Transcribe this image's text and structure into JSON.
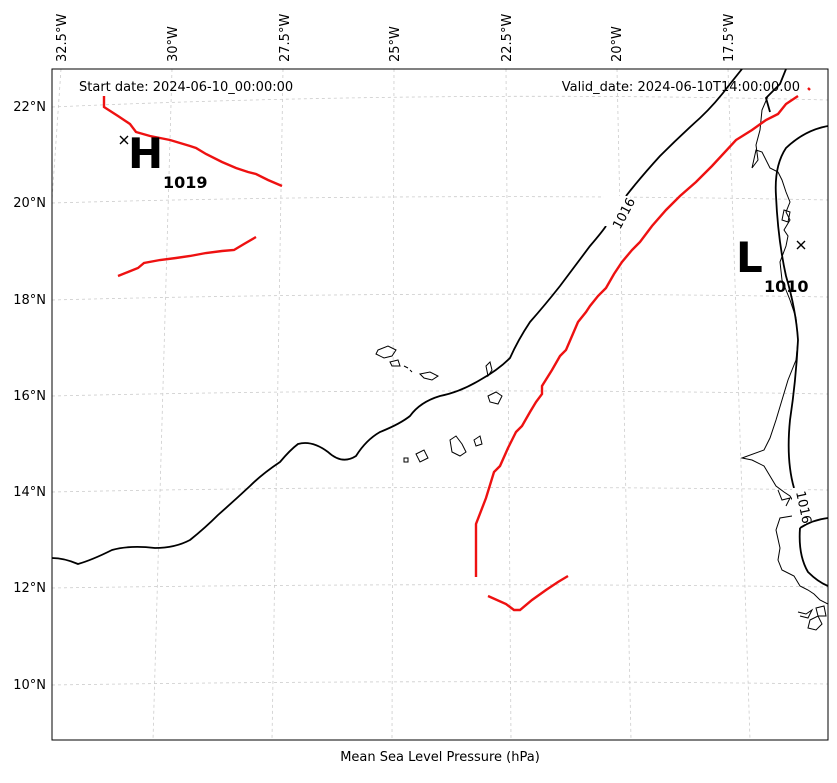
{
  "map": {
    "start_date": "Start date: 2024-06-10_00:00:00",
    "valid_date": "Valid_date: 2024-06-10T14:00:00.00",
    "caption": "Mean Sea Level Pressure (hPa)",
    "longitude_labels": [
      "32.5°W",
      "30°W",
      "27.5°W",
      "25°W",
      "22.5°W",
      "20°W",
      "17.5°W"
    ],
    "latitude_labels": [
      "22°N",
      "20°N",
      "18°N",
      "16°N",
      "14°N",
      "12°N",
      "10°N"
    ],
    "pressure_centers": [
      {
        "type": "H",
        "value": "1019"
      },
      {
        "type": "L",
        "value": "1010"
      }
    ],
    "isobar_labels": [
      "1016",
      "1016"
    ],
    "colors": {
      "front": "#ee1111",
      "isobar": "#000000",
      "grid": "#cccccc"
    }
  }
}
